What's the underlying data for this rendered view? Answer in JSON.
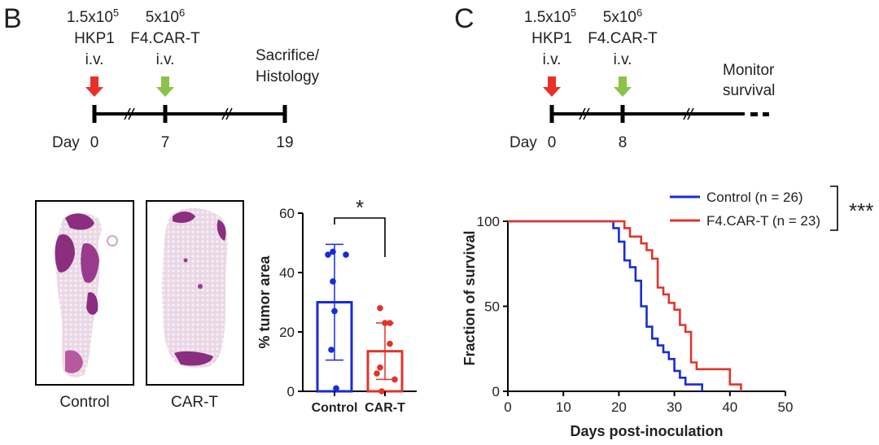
{
  "panel_b": {
    "label": "B",
    "timeline": {
      "injection1": {
        "line1": "1.5x10",
        "sup": "5",
        "line2": "HKP1",
        "line3": "i.v."
      },
      "injection2": {
        "line1": "5x10",
        "sup": "6",
        "line2": "F4.CAR-T",
        "line3": "i.v."
      },
      "endpoint": {
        "line1": "Sacrifice/",
        "line2": "Histology"
      },
      "day_label": "Day",
      "days": [
        "0",
        "7",
        "19"
      ]
    },
    "histology": {
      "left_caption": "Control",
      "right_caption": "CAR-T"
    }
  },
  "panel_c": {
    "label": "C",
    "timeline": {
      "injection1": {
        "line1": "1.5x10",
        "sup": "5",
        "line2": "HKP1",
        "line3": "i.v."
      },
      "injection2": {
        "line1": "5x10",
        "sup": "6",
        "line2": "F4.CAR-T",
        "line3": "i.v."
      },
      "endpoint": {
        "line1": "Monitor",
        "line2": "survival"
      },
      "day_label": "Day",
      "days": [
        "0",
        "8"
      ]
    }
  },
  "colors": {
    "control": "#1a2bd6",
    "cart": "#e0352b",
    "red_arrow": "#e8302a",
    "green_arrow": "#8bc34a",
    "tissue": "#8b2e7f"
  },
  "chart_data": [
    {
      "type": "bar",
      "ylabel": "% tumor area",
      "ylim": [
        0,
        60
      ],
      "yticks": [
        0,
        20,
        40,
        60
      ],
      "categories": [
        "Control",
        "CAR-T"
      ],
      "values": [
        30,
        13.5
      ],
      "error_sd": [
        19.5,
        9.5
      ],
      "points": [
        [
          47,
          46,
          46,
          37,
          27,
          14,
          1
        ],
        [
          28,
          23,
          23,
          16,
          8,
          6,
          4,
          0
        ]
      ],
      "significance": "*"
    },
    {
      "type": "line",
      "xlabel": "Days post-inoculation",
      "ylabel": "Fraction of survival",
      "xlim": [
        0,
        50
      ],
      "ylim": [
        0,
        100
      ],
      "xticks": [
        0,
        10,
        20,
        30,
        40,
        50
      ],
      "yticks": [
        0,
        50,
        100
      ],
      "significance": "***",
      "series": [
        {
          "name": "Control (n = 26)",
          "steps": [
            [
              0,
              100
            ],
            [
              19,
              100
            ],
            [
              19,
              96
            ],
            [
              20,
              96
            ],
            [
              20,
              88
            ],
            [
              21,
              88
            ],
            [
              21,
              77
            ],
            [
              22,
              77
            ],
            [
              22,
              73
            ],
            [
              23,
              73
            ],
            [
              23,
              65
            ],
            [
              24,
              65
            ],
            [
              24,
              50
            ],
            [
              25,
              50
            ],
            [
              25,
              38
            ],
            [
              26,
              38
            ],
            [
              26,
              31
            ],
            [
              27,
              31
            ],
            [
              27,
              27
            ],
            [
              28,
              27
            ],
            [
              28,
              23
            ],
            [
              29,
              23
            ],
            [
              29,
              19
            ],
            [
              30,
              19
            ],
            [
              30,
              12
            ],
            [
              31,
              12
            ],
            [
              31,
              8
            ],
            [
              32,
              8
            ],
            [
              32,
              4
            ],
            [
              35,
              4
            ],
            [
              35,
              0
            ]
          ]
        },
        {
          "name": "F4.CAR-T (n = 23)",
          "steps": [
            [
              0,
              100
            ],
            [
              21,
              100
            ],
            [
              21,
              96
            ],
            [
              22,
              96
            ],
            [
              22,
              91
            ],
            [
              24,
              91
            ],
            [
              24,
              87
            ],
            [
              25,
              87
            ],
            [
              25,
              83
            ],
            [
              26,
              83
            ],
            [
              26,
              78
            ],
            [
              27,
              78
            ],
            [
              27,
              61
            ],
            [
              28,
              61
            ],
            [
              28,
              57
            ],
            [
              29,
              57
            ],
            [
              29,
              52
            ],
            [
              30,
              52
            ],
            [
              30,
              48
            ],
            [
              31,
              48
            ],
            [
              31,
              39
            ],
            [
              32,
              39
            ],
            [
              32,
              35
            ],
            [
              33,
              35
            ],
            [
              33,
              17
            ],
            [
              34,
              17
            ],
            [
              34,
              13
            ],
            [
              40,
              13
            ],
            [
              40,
              4
            ],
            [
              42,
              4
            ],
            [
              42,
              0
            ]
          ]
        }
      ]
    }
  ]
}
